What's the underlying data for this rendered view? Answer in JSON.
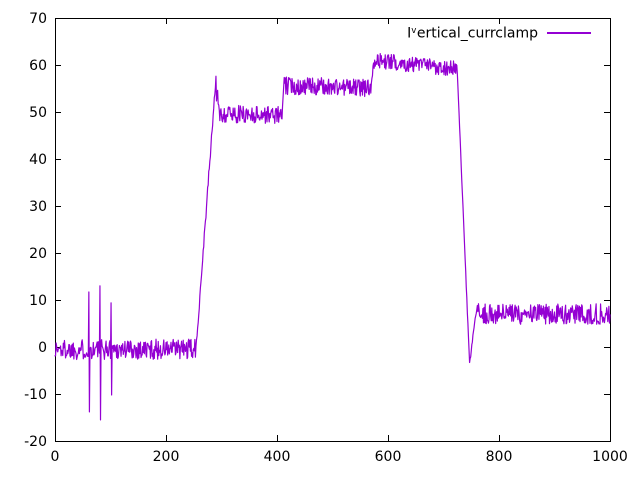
{
  "chart_data": {
    "type": "line",
    "title": "",
    "legend": {
      "label_raw": "I^vertical_currclamp",
      "prefix": "I",
      "sup": "v",
      "rest": "ertical_currclamp",
      "position": "top-right-inside"
    },
    "xlabel": "",
    "ylabel": "",
    "xlim": [
      0,
      1000
    ],
    "ylim": [
      -20,
      70
    ],
    "xticks": [
      0,
      200,
      400,
      600,
      800,
      1000
    ],
    "yticks": [
      -20,
      -10,
      0,
      10,
      20,
      30,
      40,
      50,
      60,
      70
    ],
    "grid": false,
    "line_color": "#9400d3",
    "axis_color": "#000000",
    "background": "#ffffff",
    "tick_font_px": 14,
    "series": [
      {
        "name": "I^vertical_currclamp",
        "description": "Noisy trace: ~0 baseline (x 0-253) with glitch spikes to +12/-14 (x~61), +13/-15.5 (x~81), +9/-10 (x~101); steep ramp x 253-290 up to ~57; plateau ~49.5 (x 295-410); step to plateau ~55.5 (x 410-570); step to plateau ~60.5 decaying to ~59 (x 570-725); steep fall to -3.8 at x~747; recovery to plateau ~7 (x 757-1000).",
        "generator": {
          "step": 1,
          "seed": 1337,
          "segments": [
            {
              "x0": 0,
              "x1": 253,
              "y0": -0.5,
              "y1": -0.5,
              "noise": 2.2
            },
            {
              "x0": 253,
              "x1": 288,
              "y0": -2.0,
              "y1": 54.0,
              "noise": 1.0
            },
            {
              "x0": 288,
              "x1": 295,
              "y0": 55.0,
              "y1": 52.5,
              "noise": 2.3
            },
            {
              "x0": 295,
              "x1": 410,
              "y0": 49.6,
              "y1": 49.4,
              "noise": 1.9
            },
            {
              "x0": 410,
              "x1": 412,
              "y0": 51.0,
              "y1": 55.0,
              "noise": 0.5
            },
            {
              "x0": 412,
              "x1": 570,
              "y0": 55.6,
              "y1": 55.1,
              "noise": 1.9
            },
            {
              "x0": 570,
              "x1": 574,
              "y0": 56.5,
              "y1": 60.5,
              "noise": 0.8
            },
            {
              "x0": 574,
              "x1": 725,
              "y0": 61.0,
              "y1": 59.2,
              "noise": 1.7
            },
            {
              "x0": 725,
              "x1": 747,
              "y0": 58.0,
              "y1": -3.8,
              "noise": 0.4
            },
            {
              "x0": 747,
              "x1": 757,
              "y0": -3.8,
              "y1": 6.3,
              "noise": 0.5
            },
            {
              "x0": 757,
              "x1": 1000,
              "y0": 7.0,
              "y1": 7.0,
              "noise": 2.2
            }
          ],
          "spikes": [
            {
              "x": 61,
              "y": 11.7
            },
            {
              "x": 62,
              "y": -13.8
            },
            {
              "x": 81,
              "y": 13.0
            },
            {
              "x": 82,
              "y": -15.5
            },
            {
              "x": 101,
              "y": 9.4
            },
            {
              "x": 102,
              "y": -10.2
            },
            {
              "x": 290,
              "y": 57.6
            }
          ]
        }
      }
    ]
  }
}
